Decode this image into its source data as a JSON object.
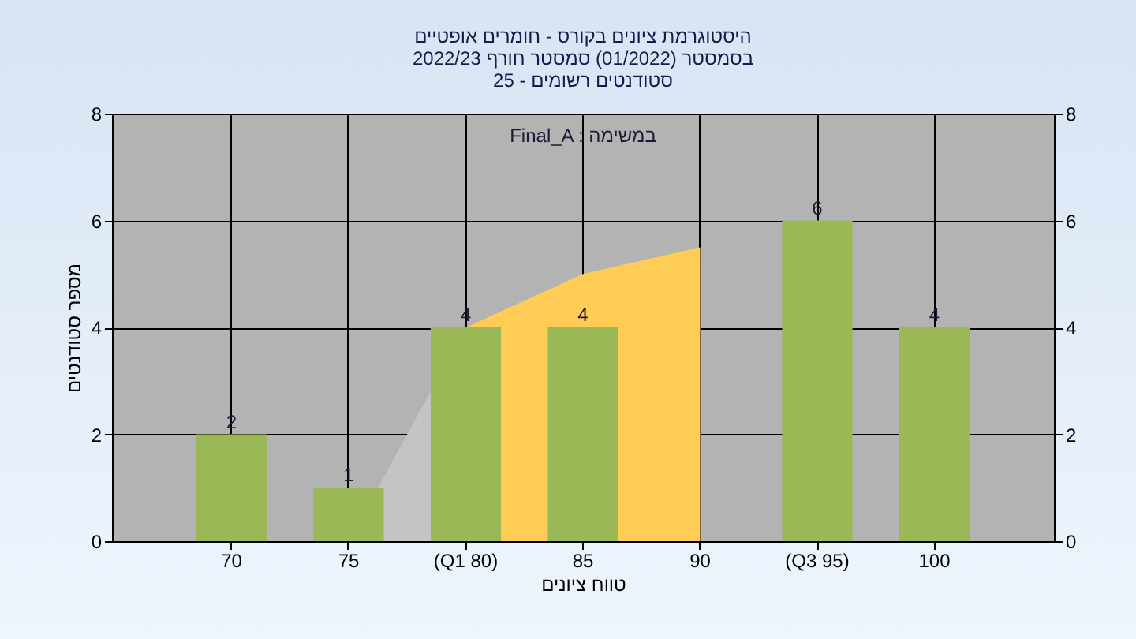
{
  "chart_data": {
    "type": "bar",
    "title": "היסטוגרמת ציונים בקורס - חומרים אופטיים\nבסמסטר  (01/2022)  סמסטר חורף 2022/23\nסטודנטים רשומים - 25",
    "xlabel": "טווח ציונים",
    "ylabel": "מספר סטודנטים",
    "annotations": [
      "Final_A : במשימה"
    ],
    "categories": [
      "70",
      "75",
      "(Q1 80)",
      "85",
      "90",
      "(Q3 95)",
      "100"
    ],
    "series": [
      {
        "type": "area",
        "color": "#c4c4c4",
        "values": [
          null,
          0,
          4,
          null,
          null,
          null,
          null
        ]
      },
      {
        "type": "area",
        "color": "#ffcc55",
        "values": [
          null,
          null,
          4,
          5,
          5.5,
          null,
          null
        ]
      },
      {
        "color": "#9ab855",
        "values": [
          2,
          1,
          4,
          4,
          0,
          6,
          4
        ],
        "value_labels": [
          "2",
          "1",
          "4",
          "4",
          null,
          "6",
          "4"
        ]
      }
    ],
    "ylim": [
      0,
      8
    ],
    "yticks": [
      0,
      2,
      4,
      6,
      8
    ],
    "y2lim": [
      0,
      8
    ],
    "y2ticks": [
      0,
      2,
      4,
      6,
      8
    ],
    "grid": true
  }
}
